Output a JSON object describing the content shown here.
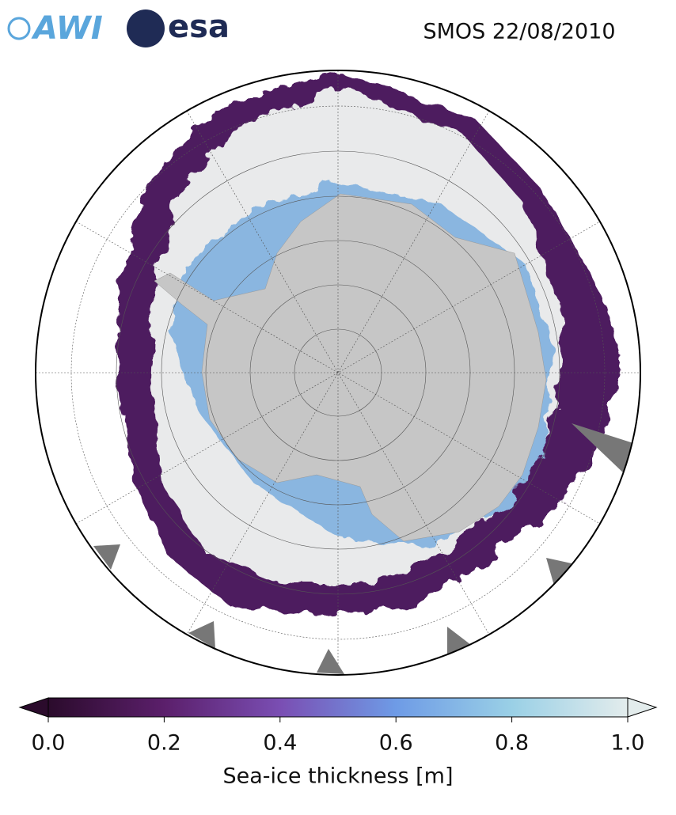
{
  "header": {
    "logos": [
      "AWI",
      "esa"
    ],
    "title": "SMOS 22/08/2010"
  },
  "colorbar": {
    "label": "Sea-ice thickness [m]",
    "lim": [
      0,
      1
    ],
    "ticks": [
      {
        "value": 0,
        "label": "0.0"
      },
      {
        "value": 0.2,
        "label": "0.2"
      },
      {
        "value": 0.4,
        "label": "0.4"
      },
      {
        "value": 0.6,
        "label": "0.6"
      },
      {
        "value": 0.8,
        "label": "0.8"
      },
      {
        "value": 1,
        "label": "1.0"
      }
    ],
    "colors": [
      "#2b0b2c",
      "#5b1f6b",
      "#7a4eb3",
      "#6e9be6",
      "#9ad0e6",
      "#e3ecec"
    ]
  }
}
